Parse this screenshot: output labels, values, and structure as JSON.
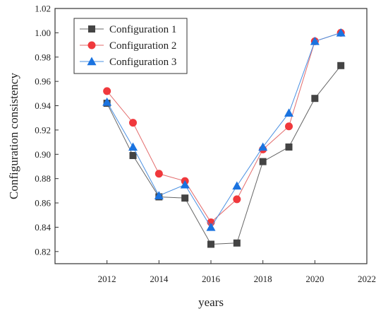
{
  "chart_data": {
    "type": "line",
    "xlabel": "years",
    "ylabel": "Configuration consistency",
    "xlim": [
      2010,
      2022
    ],
    "ylim": [
      0.81,
      1.02
    ],
    "x_ticks": [
      2012,
      2014,
      2016,
      2018,
      2020,
      2022
    ],
    "y_ticks": [
      0.82,
      0.84,
      0.86,
      0.88,
      0.9,
      0.92,
      0.94,
      0.96,
      0.98,
      1.0,
      1.02
    ],
    "y_tick_labels": [
      "0.82",
      "0.84",
      "0.86",
      "0.88",
      "0.90",
      "0.92",
      "0.94",
      "0.96",
      "0.98",
      "1.00",
      "1.02"
    ],
    "x": [
      2012,
      2013,
      2014,
      2015,
      2016,
      2017,
      2018,
      2019,
      2020,
      2021
    ],
    "legend": "top-left",
    "grid": false,
    "series": [
      {
        "name": "Configuration 1",
        "marker": "square",
        "color": "#444444",
        "line_color": "#666666",
        "values": [
          0.942,
          0.899,
          0.865,
          0.864,
          0.826,
          0.827,
          0.894,
          0.906,
          0.946,
          0.973
        ]
      },
      {
        "name": "Configuration 2",
        "marker": "circle",
        "color": "#f0383c",
        "line_color": "#e36b6b",
        "values": [
          0.952,
          0.926,
          0.884,
          0.878,
          0.844,
          0.863,
          0.904,
          0.923,
          0.993,
          1.0
        ]
      },
      {
        "name": "Configuration 3",
        "marker": "triangle",
        "color": "#1a73e0",
        "line_color": "#4a90e2",
        "values": [
          0.943,
          0.906,
          0.866,
          0.875,
          0.84,
          0.874,
          0.906,
          0.934,
          0.993,
          1.0
        ]
      }
    ]
  }
}
